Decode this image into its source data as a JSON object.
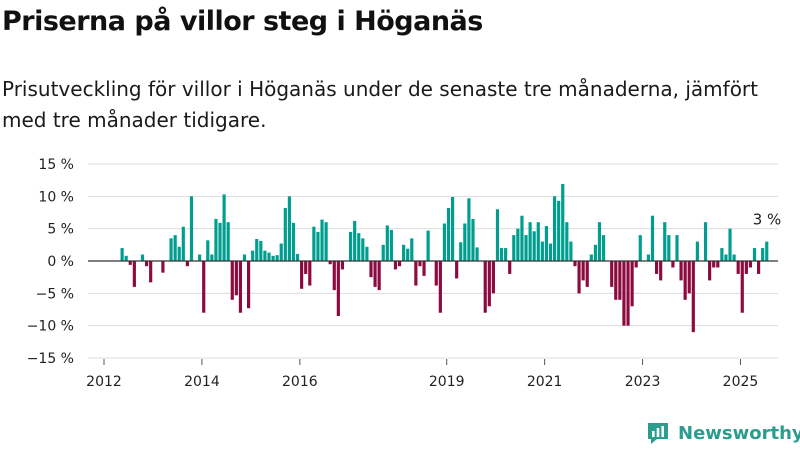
{
  "title": "Priserna på villor steg i Höganäs",
  "subtitle": "Prisutveckling för villor i Höganäs under de senaste tre månaderna, jämfört med tre månader tidigare.",
  "brand": "Newsworthy",
  "colors": {
    "positive": "#009e8f",
    "negative": "#8c0a3f",
    "grid": "#dddddd",
    "zero_line": "#333333",
    "brand": "#2a9d8f"
  },
  "chart_data": {
    "type": "bar",
    "title": "Priserna på villor steg i Höganäs",
    "xlabel": "",
    "ylabel": "",
    "ylim": [
      -15,
      15
    ],
    "y_ticks": [
      {
        "value": 15,
        "label": "15 %"
      },
      {
        "value": 10,
        "label": "10 %"
      },
      {
        "value": 5,
        "label": "5 %"
      },
      {
        "value": 0,
        "label": "0 %"
      },
      {
        "value": -5,
        "label": "−5 %"
      },
      {
        "value": -10,
        "label": "−10 %"
      },
      {
        "value": -15,
        "label": "−15 %"
      }
    ],
    "x_ticks": [
      {
        "value": 2012,
        "label": "2012"
      },
      {
        "value": 2014,
        "label": "2014"
      },
      {
        "value": 2016,
        "label": "2016"
      },
      {
        "value": 2019,
        "label": "2019"
      },
      {
        "value": 2021,
        "label": "2021"
      },
      {
        "value": 2023,
        "label": "2023"
      },
      {
        "value": 2025,
        "label": "2025"
      }
    ],
    "series_start": "2012-01",
    "frequency": "monthly",
    "values": [
      0,
      0,
      0,
      0,
      2,
      0.8,
      -0.6,
      -4,
      0,
      1,
      -0.8,
      -3.3,
      0,
      0,
      -1.8,
      0,
      3.5,
      4,
      2.2,
      5.3,
      -0.8,
      10,
      0,
      1,
      -8,
      3.2,
      1,
      6.5,
      5.9,
      10.3,
      6,
      -6,
      -5.3,
      -8,
      1,
      -7.3,
      1.6,
      3.4,
      3.1,
      1.6,
      1.3,
      0.8,
      0.9,
      2.7,
      8.2,
      10,
      5.9,
      1.1,
      -4.3,
      -2,
      -3.8,
      5.3,
      4.5,
      6.4,
      6,
      -0.5,
      -4.5,
      -8.5,
      -1.3,
      0,
      4.5,
      6.2,
      4.3,
      3.5,
      2.2,
      -2.5,
      -4,
      -4.5,
      2.5,
      5.5,
      4.8,
      -1.3,
      -0.8,
      2.5,
      1.9,
      3.5,
      -3.8,
      -0.8,
      -2.3,
      4.7,
      0,
      -3.8,
      -8,
      5.8,
      8.2,
      9.9,
      -2.7,
      2.9,
      5.8,
      9.7,
      6.5,
      2.1,
      0,
      -8,
      -7,
      -5,
      8,
      2,
      2,
      -2,
      4,
      5,
      7,
      4,
      6,
      4.6,
      6,
      3,
      5.4,
      2.7,
      10,
      9.3,
      11.9,
      6,
      3,
      -0.8,
      -5,
      -3,
      -4,
      1,
      2.5,
      6,
      4,
      0,
      -4,
      -6,
      -6,
      -10,
      -10,
      -7,
      -1,
      4,
      0,
      1,
      7,
      -2,
      -3,
      6,
      4,
      -1,
      4,
      -3,
      -6,
      -5,
      -11,
      3,
      0,
      6,
      -3,
      -1,
      -1,
      2,
      1,
      5,
      1,
      -2,
      -8,
      -2,
      -1,
      2,
      -2,
      2,
      3
    ],
    "annotation": {
      "label": "3 %"
    }
  }
}
